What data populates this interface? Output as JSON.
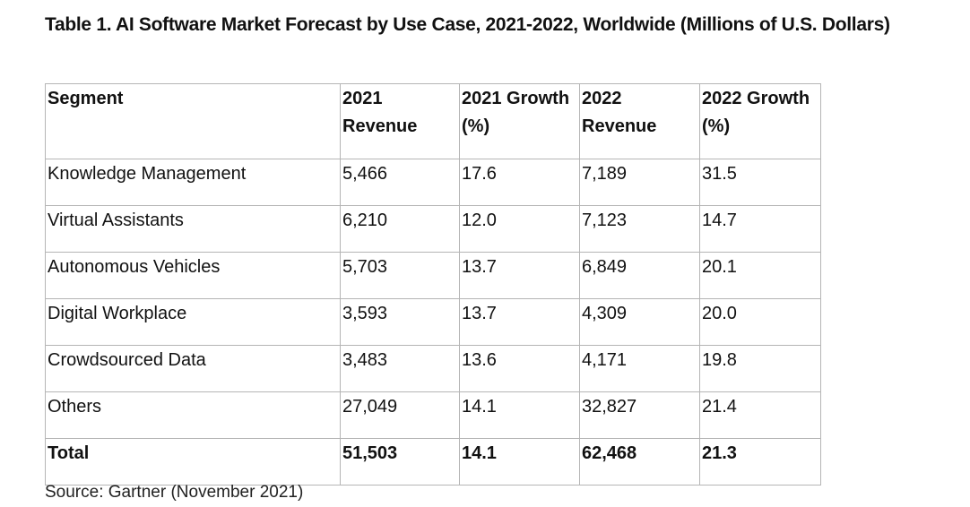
{
  "table": {
    "title": "Table 1. AI Software Market Forecast by Use Case, 2021-2022, Worldwide (Millions of U.S. Dollars)",
    "headers": [
      "Segment",
      "2021 Revenue",
      "2021 Growth (%)",
      "2022 Revenue",
      "2022 Growth (%)"
    ],
    "rows": [
      {
        "segment": "Knowledge Management",
        "rev_2021": "5,466",
        "growth_2021": "17.6",
        "rev_2022": "7,189",
        "growth_2022": "31.5"
      },
      {
        "segment": "Virtual Assistants",
        "rev_2021": "6,210",
        "growth_2021": "12.0",
        "rev_2022": "7,123",
        "growth_2022": "14.7"
      },
      {
        "segment": "Autonomous Vehicles",
        "rev_2021": "5,703",
        "growth_2021": "13.7",
        "rev_2022": "6,849",
        "growth_2022": "20.1"
      },
      {
        "segment": "Digital Workplace",
        "rev_2021": "3,593",
        "growth_2021": "13.7",
        "rev_2022": "4,309",
        "growth_2022": "20.0"
      },
      {
        "segment": "Crowdsourced Data",
        "rev_2021": "3,483",
        "growth_2021": "13.6",
        "rev_2022": "4,171",
        "growth_2022": "19.8"
      },
      {
        "segment": "Others",
        "rev_2021": "27,049",
        "growth_2021": "14.1",
        "rev_2022": "32,827",
        "growth_2022": "21.4"
      }
    ],
    "total": {
      "segment": "Total",
      "rev_2021": "51,503",
      "growth_2021": "14.1",
      "rev_2022": "62,468",
      "growth_2022": "21.3"
    },
    "source": "Source: Gartner (November 2021)"
  }
}
